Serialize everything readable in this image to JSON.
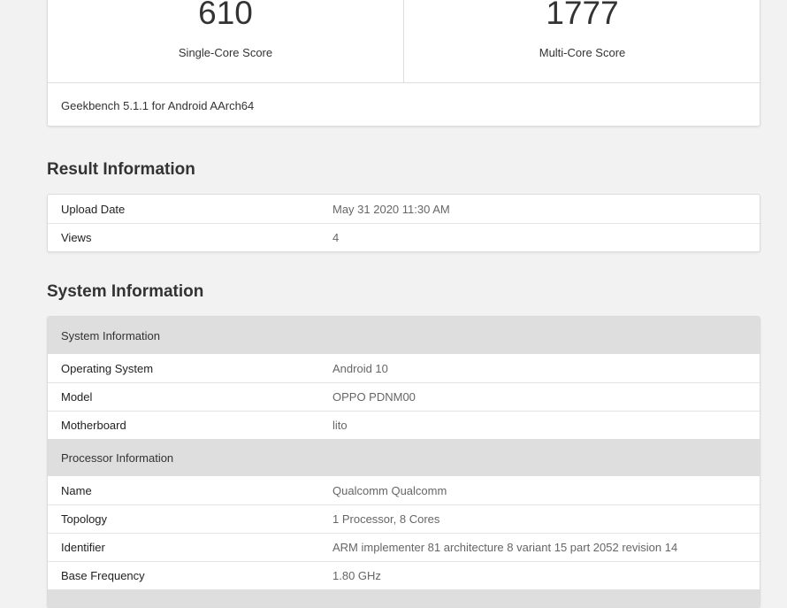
{
  "scores": {
    "single": {
      "value": "610",
      "label": "Single-Core Score"
    },
    "multi": {
      "value": "1777",
      "label": "Multi-Core Score"
    },
    "footer": "Geekbench 5.1.1 for Android AArch64"
  },
  "result_info": {
    "title": "Result Information",
    "rows": [
      {
        "k": "Upload Date",
        "v": "May 31 2020 11:30 AM"
      },
      {
        "k": "Views",
        "v": "4"
      }
    ]
  },
  "system_info": {
    "title": "System Information",
    "system": {
      "header": "System Information",
      "rows": [
        {
          "k": "Operating System",
          "v": "Android 10"
        },
        {
          "k": "Model",
          "v": "OPPO PDNM00"
        },
        {
          "k": "Motherboard",
          "v": "lito"
        }
      ]
    },
    "processor": {
      "header": "Processor Information",
      "rows": [
        {
          "k": "Name",
          "v": "Qualcomm Qualcomm"
        },
        {
          "k": "Topology",
          "v": "1 Processor, 8 Cores"
        },
        {
          "k": "Identifier",
          "v": "ARM implementer 81 architecture 8 variant 15 part 2052 revision 14"
        },
        {
          "k": "Base Frequency",
          "v": "1.80 GHz"
        }
      ]
    }
  }
}
